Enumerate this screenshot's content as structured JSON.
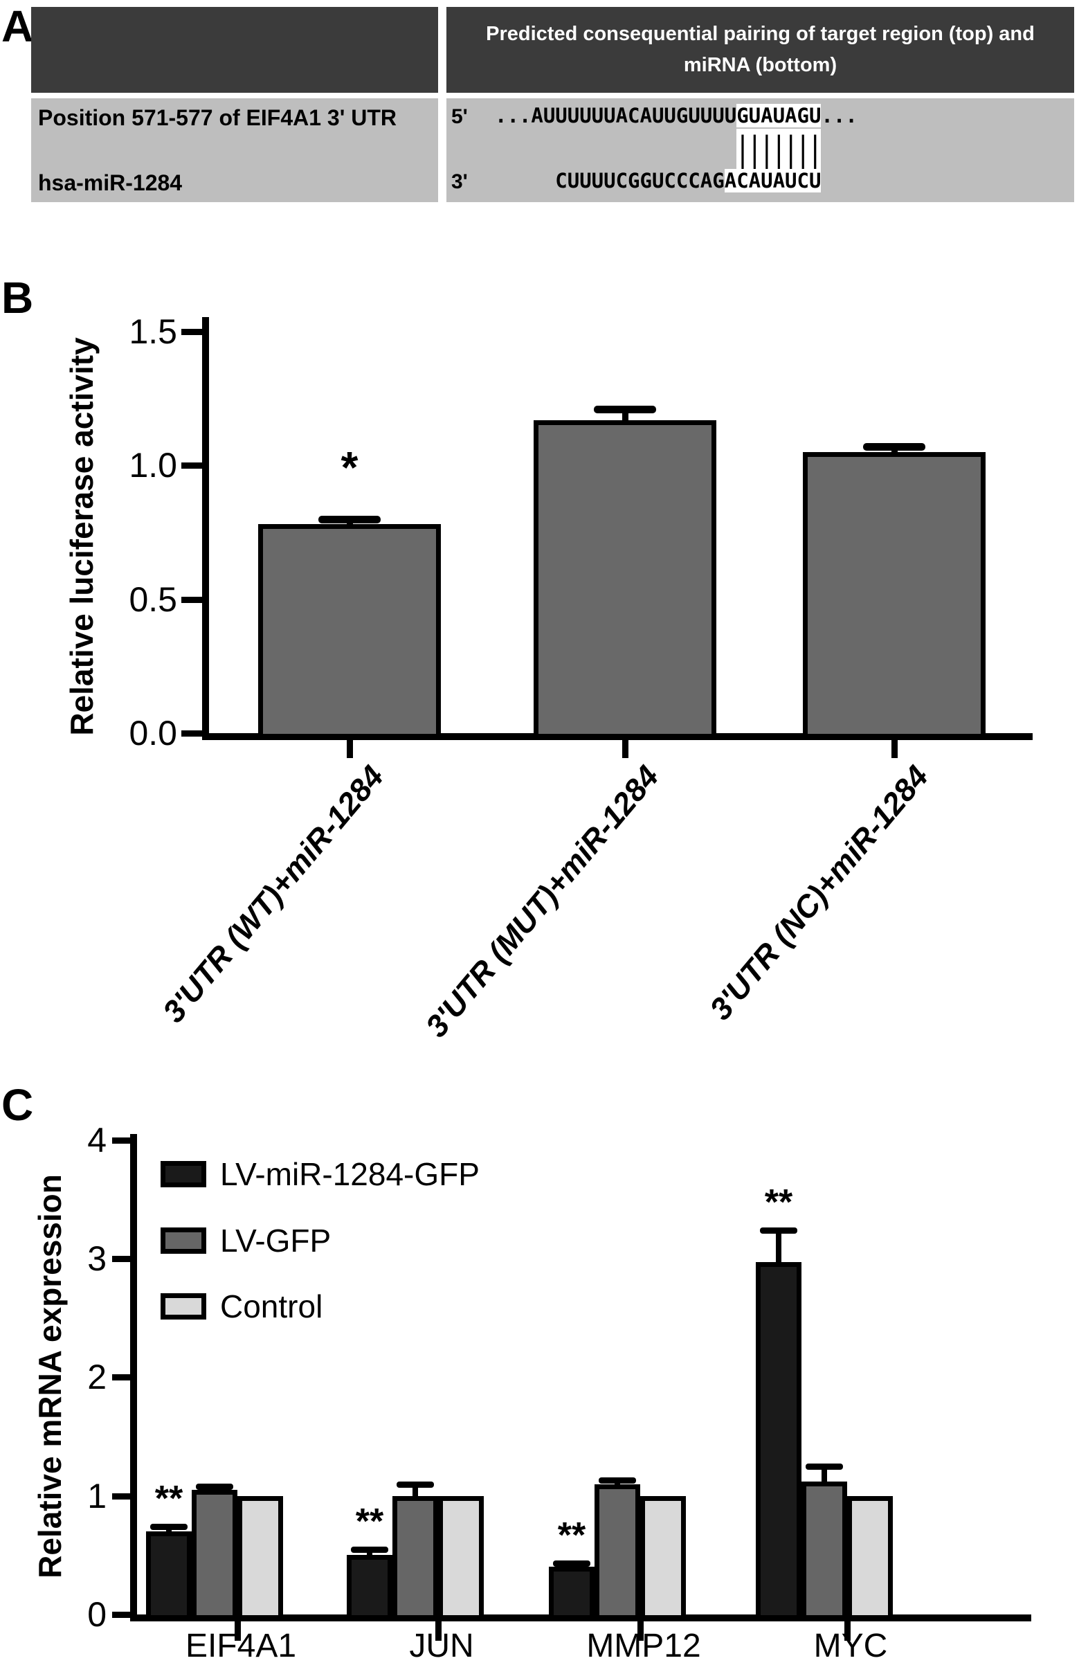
{
  "figure": {
    "panel_a": {
      "label": "A",
      "header": "Predicted consequential pairing of target region (top) and miRNA (bottom)",
      "row_gene": "Position 571-577 of EIF4A1 3' UTR",
      "row_mirna": "hsa-miR-1284",
      "pairing": {
        "top_end": "5'",
        "top_before": "...AUUUUUUACAUUGUUUU",
        "top_match": "GUAUAGU",
        "top_after": "...",
        "bars_indent": "                    ",
        "bars": "|||||||",
        "bottom_end": "3'",
        "bottom_before": "     CUUUUCGGUCCCAG",
        "bottom_match": "ACAUAUCU"
      }
    },
    "panel_b": {
      "label": "B"
    },
    "panel_c": {
      "label": "C"
    }
  },
  "chart_data": [
    {
      "type": "bar",
      "panel": "B",
      "title": "",
      "ylabel": "Relative luciferase activity",
      "xlabel": "",
      "ylim": [
        0,
        1.5
      ],
      "yticks": [
        0,
        0.5,
        1.0,
        1.5
      ],
      "ytick_labels": [
        "0.0",
        "0.5",
        "1.0",
        "1.5"
      ],
      "categories": [
        "3'UTR (WT)+miR-1284",
        "3'UTR (MUT)+miR-1284",
        "3'UTR (NC)+miR-1284"
      ],
      "values": [
        0.78,
        1.17,
        1.05
      ],
      "errors": [
        0.02,
        0.04,
        0.02
      ],
      "sig": [
        "*",
        "",
        ""
      ],
      "bar_color": "#696969",
      "grid": false,
      "legend_position": "none"
    },
    {
      "type": "grouped-bar",
      "panel": "C",
      "title": "",
      "ylabel": "Relative mRNA expression",
      "xlabel": "",
      "ylim": [
        0,
        4
      ],
      "yticks": [
        0,
        1,
        2,
        3,
        4
      ],
      "ytick_labels": [
        "0",
        "1",
        "2",
        "3",
        "4"
      ],
      "categories": [
        "EIF4A1",
        "JUN",
        "MMP12",
        "MYC"
      ],
      "series": [
        {
          "name": "LV-miR-1284-GFP",
          "color": "#1a1a1a",
          "values": [
            0.7,
            0.5,
            0.4,
            2.97
          ],
          "errors": [
            0.04,
            0.05,
            0.03,
            0.27
          ],
          "sig": [
            "**",
            "**",
            "**",
            "**"
          ]
        },
        {
          "name": "LV-GFP",
          "color": "#666666",
          "values": [
            1.05,
            1.0,
            1.1,
            1.12
          ],
          "errors": [
            0.03,
            0.1,
            0.03,
            0.13
          ],
          "sig": [
            "",
            "",
            "",
            ""
          ]
        },
        {
          "name": "Control",
          "color": "#d9d9d9",
          "values": [
            1.0,
            1.0,
            1.0,
            1.0
          ],
          "errors": [
            0,
            0,
            0,
            0
          ],
          "sig": [
            "",
            "",
            "",
            ""
          ]
        }
      ],
      "legend_position": "upper-left",
      "grid": false
    }
  ]
}
